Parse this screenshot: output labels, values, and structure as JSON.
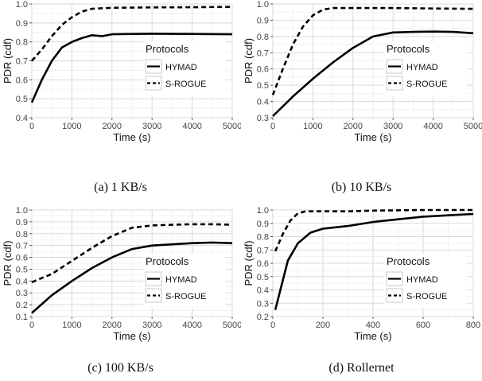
{
  "chart_data": [
    {
      "type": "line",
      "caption": "(a) 1 KB/s",
      "xlabel": "Time (s)",
      "ylabel": "PDR (cdf)",
      "xlim": [
        0,
        5000
      ],
      "ylim": [
        0.4,
        1.0
      ],
      "xticks": [
        0,
        1000,
        2000,
        3000,
        4000,
        5000
      ],
      "yticks": [
        0.4,
        0.5,
        0.6,
        0.7,
        0.8,
        0.9,
        1.0
      ],
      "ytick_labels": [
        "0.4",
        "0.5",
        "0.6",
        "0.7",
        "0.8",
        "0.9",
        "1.0"
      ],
      "grid": true,
      "legend": {
        "title": "Protocols",
        "placement": "right"
      },
      "series": [
        {
          "name": "HYMAD",
          "style": "solid",
          "x": [
            0,
            250,
            500,
            750,
            1000,
            1250,
            1500,
            1750,
            2000,
            2500,
            3000,
            4000,
            5000
          ],
          "y": [
            0.48,
            0.6,
            0.7,
            0.77,
            0.8,
            0.82,
            0.835,
            0.83,
            0.84,
            0.842,
            0.843,
            0.842,
            0.84
          ]
        },
        {
          "name": "S-ROGUE",
          "style": "dashed",
          "x": [
            0,
            250,
            500,
            750,
            1000,
            1250,
            1500,
            2000,
            3000,
            4000,
            5000
          ],
          "y": [
            0.7,
            0.76,
            0.83,
            0.89,
            0.93,
            0.96,
            0.975,
            0.98,
            0.982,
            0.983,
            0.985
          ]
        }
      ]
    },
    {
      "type": "line",
      "caption": "(b) 10 KB/s",
      "xlabel": "Time (s)",
      "ylabel": "PDR (cdf)",
      "xlim": [
        0,
        5000
      ],
      "ylim": [
        0.3,
        1.0
      ],
      "xticks": [
        0,
        1000,
        2000,
        3000,
        4000,
        5000
      ],
      "yticks": [
        0.3,
        0.4,
        0.5,
        0.6,
        0.7,
        0.8,
        0.9,
        1.0
      ],
      "ytick_labels": [
        "0.3",
        "0.4",
        "0.5",
        "0.6",
        "0.7",
        "0.8",
        "0.9",
        "1.0"
      ],
      "grid": true,
      "legend": {
        "title": "Protocols",
        "placement": "right"
      },
      "series": [
        {
          "name": "HYMAD",
          "style": "solid",
          "x": [
            0,
            500,
            1000,
            1500,
            2000,
            2500,
            3000,
            3500,
            4000,
            4500,
            5000
          ],
          "y": [
            0.31,
            0.43,
            0.54,
            0.64,
            0.73,
            0.8,
            0.825,
            0.828,
            0.83,
            0.828,
            0.82
          ]
        },
        {
          "name": "S-ROGUE",
          "style": "dashed",
          "x": [
            0,
            250,
            500,
            750,
            1000,
            1250,
            1500,
            2000,
            3000,
            4000,
            5000
          ],
          "y": [
            0.44,
            0.6,
            0.75,
            0.86,
            0.93,
            0.965,
            0.975,
            0.975,
            0.975,
            0.972,
            0.97
          ]
        }
      ]
    },
    {
      "type": "line",
      "caption": "(c) 100 KB/s",
      "xlabel": "Time (s)",
      "ylabel": "PDR (cdf)",
      "xlim": [
        0,
        5000
      ],
      "ylim": [
        0.1,
        1.0
      ],
      "xticks": [
        0,
        1000,
        2000,
        3000,
        4000,
        5000
      ],
      "yticks": [
        0.1,
        0.2,
        0.3,
        0.4,
        0.5,
        0.6,
        0.7,
        0.8,
        0.9,
        1.0
      ],
      "ytick_labels": [
        "0.1",
        "0.2",
        "0.3",
        "0.4",
        "0.5",
        "0.6",
        "0.7",
        "0.8",
        "0.9",
        "1.0"
      ],
      "grid": true,
      "legend": {
        "title": "Protocols",
        "placement": "right"
      },
      "series": [
        {
          "name": "HYMAD",
          "style": "solid",
          "x": [
            0,
            500,
            1000,
            1500,
            2000,
            2500,
            3000,
            3500,
            4000,
            4500,
            5000
          ],
          "y": [
            0.13,
            0.28,
            0.4,
            0.51,
            0.6,
            0.67,
            0.7,
            0.71,
            0.72,
            0.725,
            0.72
          ]
        },
        {
          "name": "S-ROGUE",
          "style": "dashed",
          "x": [
            0,
            500,
            1000,
            1500,
            2000,
            2500,
            3000,
            3500,
            4000,
            4500,
            5000
          ],
          "y": [
            0.39,
            0.46,
            0.57,
            0.68,
            0.78,
            0.85,
            0.87,
            0.875,
            0.88,
            0.88,
            0.875
          ]
        }
      ]
    },
    {
      "type": "line",
      "caption": "(d) Rollernet",
      "xlabel": "Time (s)",
      "ylabel": "PDR (cdf)",
      "xlim": [
        0,
        800
      ],
      "ylim": [
        0.2,
        1.0
      ],
      "xticks": [
        0,
        200,
        400,
        600,
        800
      ],
      "yticks": [
        0.2,
        0.3,
        0.4,
        0.5,
        0.6,
        0.7,
        0.8,
        0.9,
        1.0
      ],
      "ytick_labels": [
        "0.2",
        "0.3",
        "0.4",
        "0.5",
        "0.6",
        "0.7",
        "0.8",
        "0.9",
        "1.0"
      ],
      "grid": true,
      "legend": {
        "title": "Protocols",
        "placement": "right"
      },
      "series": [
        {
          "name": "HYMAD",
          "style": "solid",
          "x": [
            10,
            30,
            60,
            100,
            150,
            200,
            250,
            300,
            400,
            500,
            600,
            700,
            800
          ],
          "y": [
            0.25,
            0.4,
            0.62,
            0.75,
            0.83,
            0.86,
            0.87,
            0.88,
            0.91,
            0.93,
            0.95,
            0.96,
            0.97
          ]
        },
        {
          "name": "S-ROGUE",
          "style": "dashed",
          "x": [
            10,
            40,
            70,
            100,
            130,
            200,
            300,
            400,
            600,
            800
          ],
          "y": [
            0.69,
            0.82,
            0.92,
            0.975,
            0.99,
            0.99,
            0.99,
            0.995,
            1.0,
            1.0
          ]
        }
      ]
    }
  ]
}
